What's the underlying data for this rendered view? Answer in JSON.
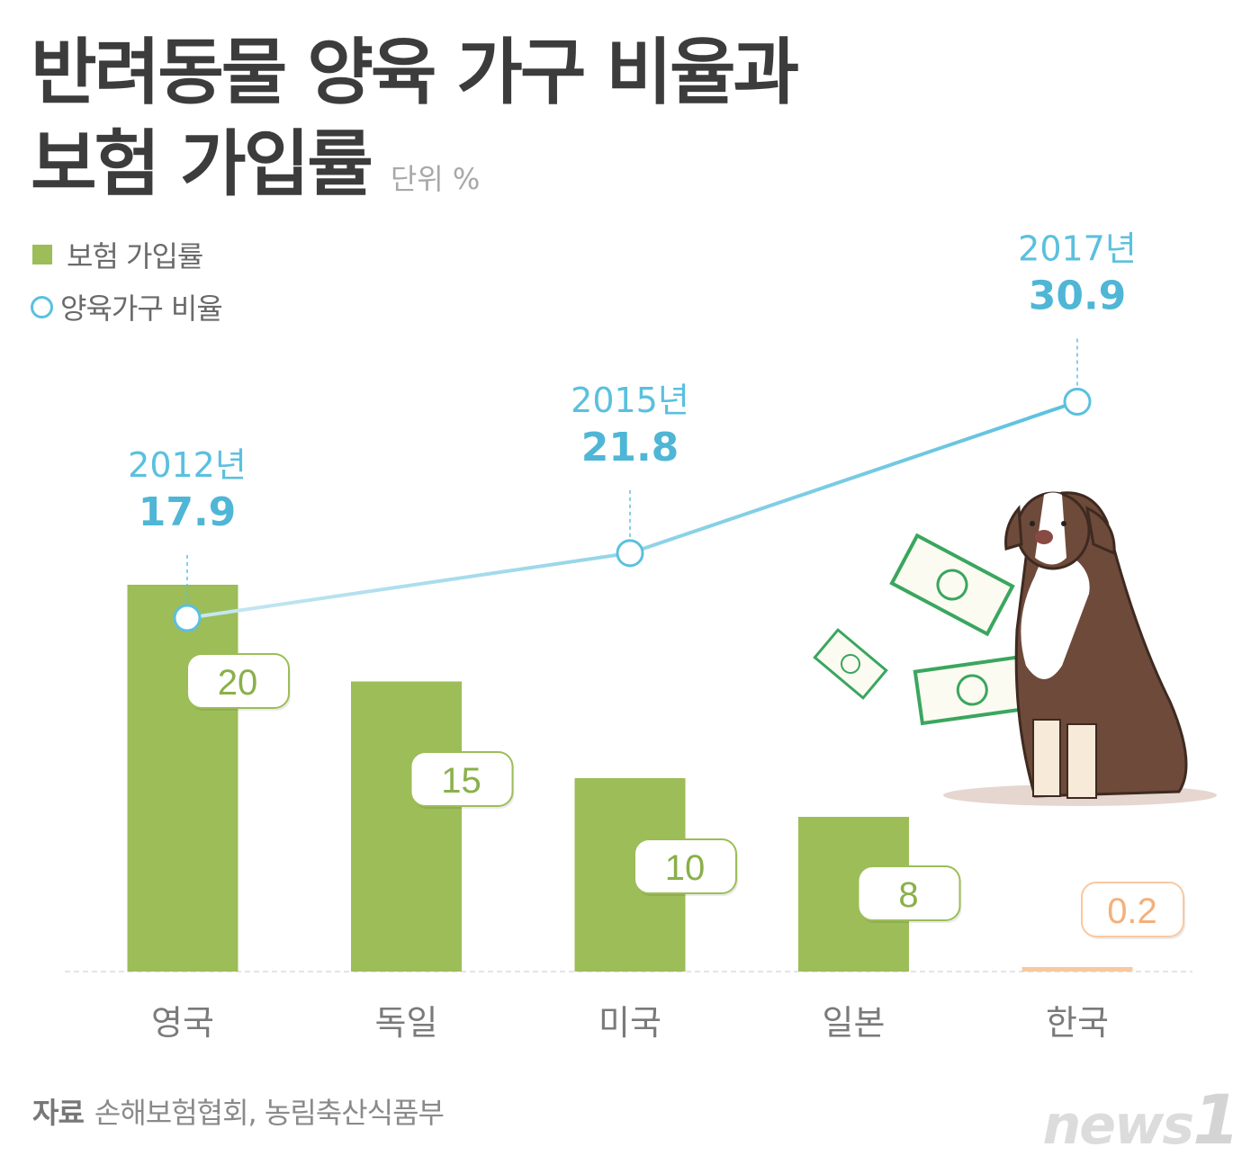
{
  "title_line1": "반려동물 양육 가구 비율과",
  "title_line2": "보험 가입률",
  "unit": "단위 %",
  "source_label": "자료",
  "source_text": "손해보험협회, 농림축산식품부",
  "logo": "news1",
  "chart_data": {
    "type": "bar+line",
    "categories": [
      "영국",
      "독일",
      "미국",
      "일본",
      "한국"
    ],
    "legend_position": "top-left",
    "grid": false,
    "series": [
      {
        "name": "보험 가입률",
        "type": "bar",
        "values": [
          20,
          15,
          10,
          8,
          0.2
        ],
        "color": "#9cbd58",
        "highlight": {
          "category": "한국",
          "color": "#f9c8a0"
        }
      },
      {
        "name": "양육가구 비율",
        "type": "line",
        "color": "#5bc0de",
        "points": [
          {
            "label": "2012년",
            "value": 17.9,
            "category": "영국"
          },
          {
            "label": "2015년",
            "value": 21.8,
            "category": "미국"
          },
          {
            "label": "2017년",
            "value": 30.9,
            "category": "한국"
          }
        ]
      }
    ],
    "data_labels": [
      "20",
      "15",
      "10",
      "8",
      "0.2"
    ],
    "line_labels": [
      "17.9",
      "21.8",
      "30.9"
    ]
  },
  "illustration": "dog-with-money-icon"
}
